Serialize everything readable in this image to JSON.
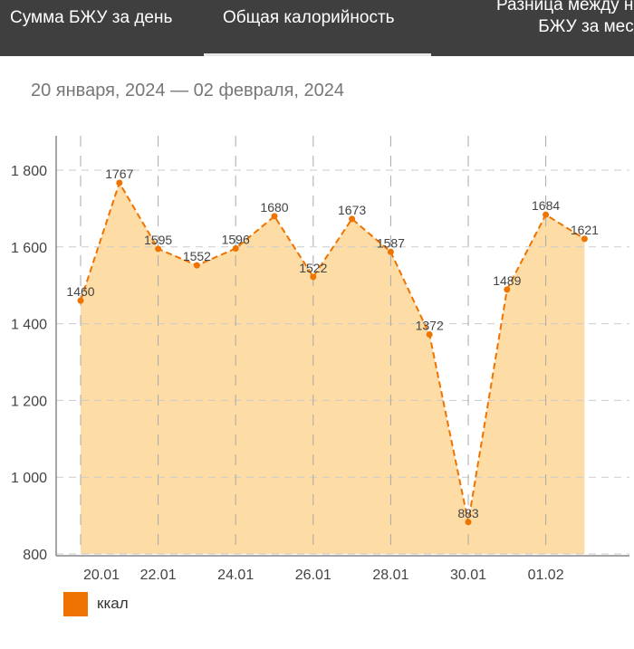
{
  "tabs": [
    {
      "label": "Сумма БЖУ за день",
      "active": false
    },
    {
      "label": "Общая калорийность",
      "active": true
    },
    {
      "label_line1": "Разница между но",
      "label_line2": "БЖУ за меся",
      "active": false
    }
  ],
  "date_range": "20 января, 2024 — 02 февраля, 2024",
  "colors": {
    "header": "#3f3f3f",
    "series": "#ef7300",
    "fill": "#fddca6"
  },
  "chart_data": {
    "type": "area",
    "x": [
      "20.01",
      "21.01",
      "22.01",
      "23.01",
      "24.01",
      "25.01",
      "26.01",
      "27.01",
      "28.01",
      "29.01",
      "30.01",
      "31.01",
      "01.02",
      "02.02"
    ],
    "series": [
      {
        "name": "ккал",
        "values": [
          1460,
          1767,
          1595,
          1552,
          1596,
          1680,
          1522,
          1673,
          1587,
          1372,
          883,
          1489,
          1684,
          1621
        ]
      }
    ],
    "y_ticks": [
      "800",
      "1 000",
      "1 200",
      "1 400",
      "1 600",
      "1 800"
    ],
    "y_tick_values": [
      800,
      1000,
      1200,
      1400,
      1600,
      1800
    ],
    "x_tick_labels": [
      "20.01",
      "22.01",
      "24.01",
      "26.01",
      "28.01",
      "30.01",
      "01.02"
    ],
    "ylim": [
      800,
      1800
    ],
    "grid": "dashed",
    "data_labels": true,
    "legend": {
      "position": "bottom-left",
      "label": "ккал"
    }
  }
}
